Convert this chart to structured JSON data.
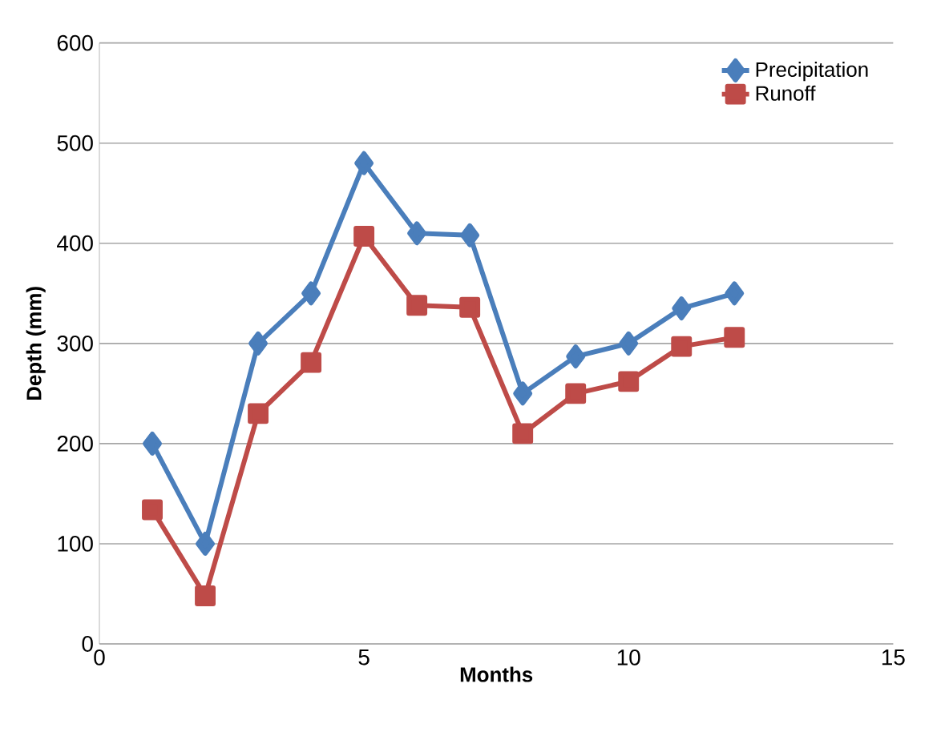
{
  "chart_data": {
    "type": "line",
    "xlabel": "Months",
    "ylabel": "Depth (mm)",
    "x": [
      1,
      2,
      3,
      4,
      5,
      6,
      7,
      8,
      9,
      10,
      11,
      12
    ],
    "series": [
      {
        "name": "Precipitation",
        "color": "#4a7ebb",
        "marker": "diamond",
        "values": [
          200,
          100,
          300,
          350,
          480,
          410,
          408,
          250,
          287,
          300,
          335,
          350
        ]
      },
      {
        "name": "Runoff",
        "color": "#be4b48",
        "marker": "square",
        "values": [
          134,
          48,
          230,
          281,
          407,
          338,
          336,
          210,
          250,
          262,
          297,
          306
        ]
      }
    ],
    "xlim": [
      0,
      15
    ],
    "xticks": [
      0,
      5,
      10,
      15
    ],
    "ylim": [
      0,
      600
    ],
    "yticks": [
      0,
      100,
      200,
      300,
      400,
      500,
      600
    ],
    "grid": "y",
    "legend": "top right",
    "line_style": "solid"
  }
}
